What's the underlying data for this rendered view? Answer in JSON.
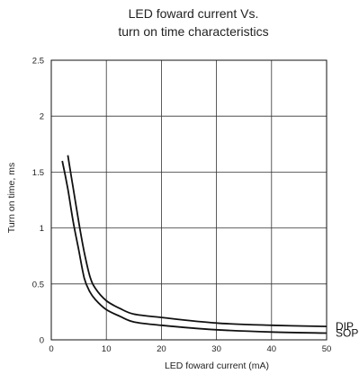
{
  "chart_data": {
    "type": "line",
    "title_lines": [
      "LED foward current Vs.",
      "turn on time characteristics"
    ],
    "xlabel": "LED foward current (mA)",
    "ylabel": "Turn on time, ms",
    "xlim": [
      0,
      50
    ],
    "ylim": [
      0,
      2.5
    ],
    "x_ticks": [
      "0",
      "10",
      "20",
      "30",
      "40",
      "50"
    ],
    "y_ticks": [
      "0",
      "0.5",
      "1",
      "1.5",
      "2",
      "2.5"
    ],
    "grid": true,
    "series": [
      {
        "name": "DIP",
        "color": "#111111",
        "points": [
          [
            3.0,
            1.65
          ],
          [
            4.0,
            1.35
          ],
          [
            5.0,
            1.05
          ],
          [
            6.0,
            0.78
          ],
          [
            7.0,
            0.57
          ],
          [
            8.0,
            0.46
          ],
          [
            10.0,
            0.35
          ],
          [
            12.5,
            0.28
          ],
          [
            15.0,
            0.23
          ],
          [
            20.0,
            0.2
          ],
          [
            30.0,
            0.15
          ],
          [
            40.0,
            0.13
          ],
          [
            50.0,
            0.12
          ]
        ]
      },
      {
        "name": "SOP",
        "color": "#111111",
        "points": [
          [
            2.0,
            1.6
          ],
          [
            3.0,
            1.35
          ],
          [
            4.0,
            1.05
          ],
          [
            5.0,
            0.8
          ],
          [
            6.0,
            0.55
          ],
          [
            7.0,
            0.43
          ],
          [
            8.0,
            0.36
          ],
          [
            10.0,
            0.27
          ],
          [
            12.5,
            0.21
          ],
          [
            15.0,
            0.16
          ],
          [
            20.0,
            0.13
          ],
          [
            30.0,
            0.09
          ],
          [
            40.0,
            0.07
          ],
          [
            50.0,
            0.06
          ]
        ]
      }
    ]
  }
}
